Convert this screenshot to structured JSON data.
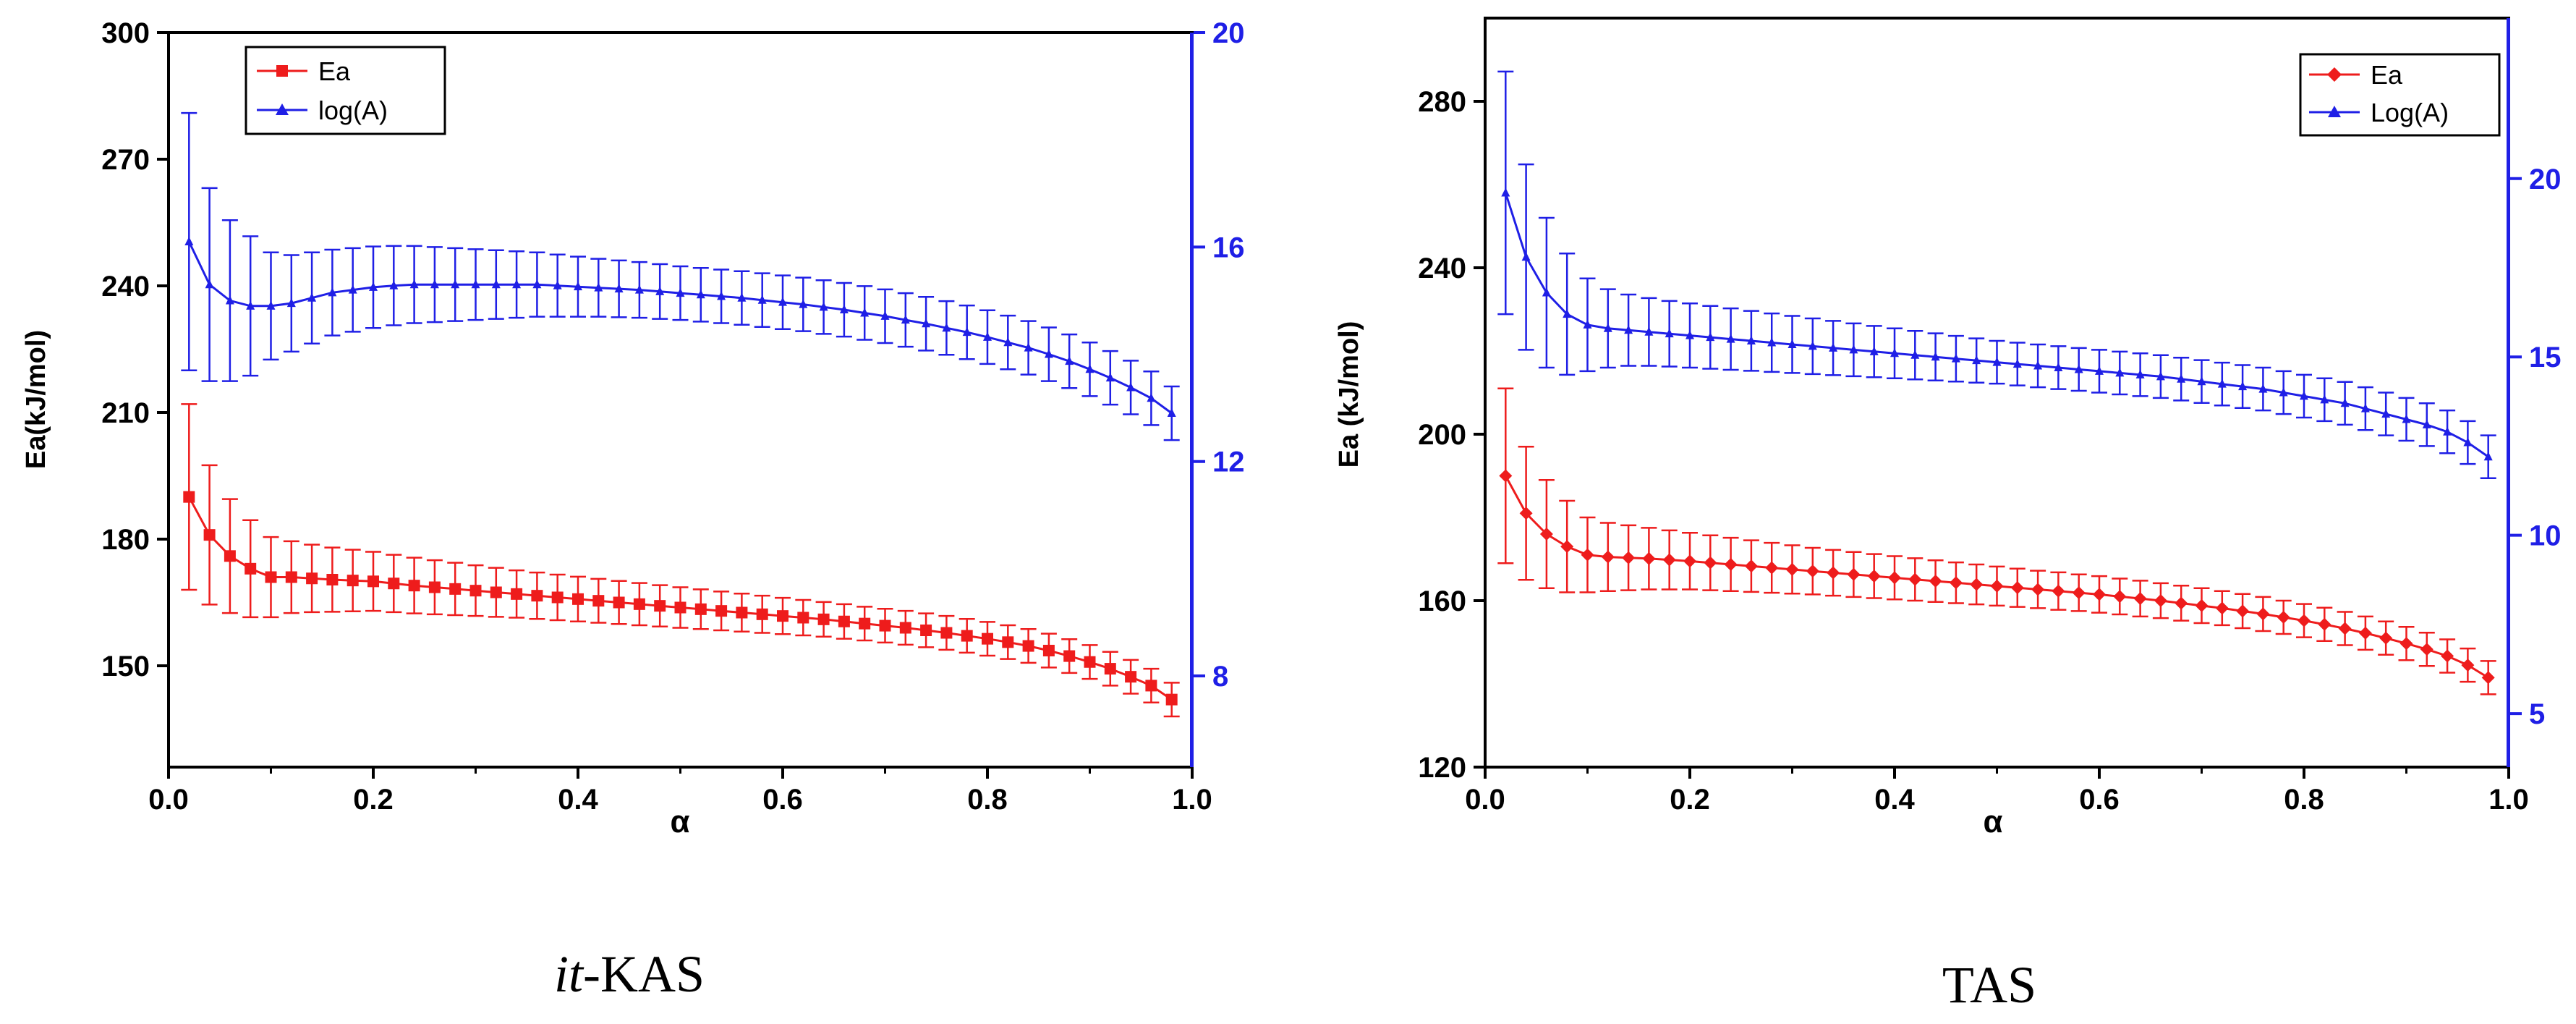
{
  "colors": {
    "ea": "#ee1c1c",
    "loga": "#1f1fe6",
    "axis": "#000000"
  },
  "chart_data": [
    {
      "type": "line",
      "caption_prefix": "it",
      "caption_suffix": "-KAS",
      "xlabel": "α",
      "ylabel": "Ea(kJ/mol)",
      "ylabel_right": "",
      "xlim": [
        0.0,
        1.0
      ],
      "ylim": [
        126,
        300
      ],
      "ylim_right": [
        6.3,
        20
      ],
      "x_ticks": [
        "0.0",
        "0.2",
        "0.4",
        "0.6",
        "0.8",
        "1.0"
      ],
      "y_ticks": [
        "150",
        "180",
        "210",
        "240",
        "270",
        "300"
      ],
      "y_ticks_right": [
        "8",
        "12",
        "16",
        "20"
      ],
      "legend": [
        "Ea",
        "log(A)"
      ],
      "legend_position": "top-left",
      "x": [
        0.02,
        0.04,
        0.06,
        0.08,
        0.1,
        0.12,
        0.14,
        0.16,
        0.18,
        0.2,
        0.22,
        0.24,
        0.26,
        0.28,
        0.3,
        0.32,
        0.34,
        0.36,
        0.38,
        0.4,
        0.42,
        0.44,
        0.46,
        0.48,
        0.5,
        0.52,
        0.54,
        0.56,
        0.58,
        0.6,
        0.62,
        0.64,
        0.66,
        0.68,
        0.7,
        0.72,
        0.74,
        0.76,
        0.78,
        0.8,
        0.82,
        0.84,
        0.86,
        0.88,
        0.9,
        0.92,
        0.94,
        0.96,
        0.98
      ],
      "series": [
        {
          "name": "Ea",
          "axis": "left",
          "marker": "square",
          "values": [
            190,
            181,
            176,
            173,
            171,
            171,
            170.7,
            170.4,
            170.2,
            170,
            169.5,
            169,
            168.6,
            168.2,
            167.8,
            167.4,
            167,
            166.6,
            166.2,
            165.8,
            165.4,
            165.0,
            164.6,
            164.2,
            163.8,
            163.4,
            163,
            162.6,
            162.2,
            161.8,
            161.4,
            161,
            160.5,
            160,
            159.5,
            159,
            158.4,
            157.8,
            157.1,
            156.4,
            155.6,
            154.7,
            153.6,
            152.3,
            150.9,
            149.3,
            147.4,
            145.3,
            142
          ],
          "errors": [
            22,
            16.5,
            13.5,
            11.5,
            9.5,
            8.5,
            8,
            7.6,
            7.3,
            7,
            6.8,
            6.6,
            6.4,
            6.2,
            6,
            5.8,
            5.6,
            5.5,
            5.4,
            5.3,
            5.2,
            5.1,
            5,
            4.9,
            4.8,
            4.7,
            4.6,
            4.5,
            4.4,
            4.3,
            4.2,
            4.1,
            4.1,
            4.0,
            4.0,
            4.0,
            4.0,
            4.0,
            4.0,
            4.0,
            4.0,
            4.0,
            4.0,
            4.0,
            4.0,
            4.0,
            4.0,
            4.0,
            4.0
          ]
        },
        {
          "name": "log(A)",
          "axis": "right",
          "marker": "triangle",
          "values": [
            16.1,
            15.3,
            15.0,
            14.9,
            14.9,
            14.95,
            15.05,
            15.15,
            15.2,
            15.25,
            15.28,
            15.3,
            15.3,
            15.3,
            15.3,
            15.3,
            15.3,
            15.3,
            15.28,
            15.26,
            15.24,
            15.22,
            15.2,
            15.17,
            15.14,
            15.11,
            15.08,
            15.05,
            15.01,
            14.97,
            14.93,
            14.88,
            14.83,
            14.77,
            14.71,
            14.64,
            14.57,
            14.49,
            14.41,
            14.32,
            14.22,
            14.12,
            14.0,
            13.87,
            13.72,
            13.56,
            13.38,
            13.18,
            12.9
          ],
          "errors": [
            2.4,
            1.8,
            1.5,
            1.3,
            1.0,
            0.9,
            0.85,
            0.8,
            0.78,
            0.76,
            0.74,
            0.72,
            0.7,
            0.68,
            0.66,
            0.64,
            0.62,
            0.6,
            0.58,
            0.56,
            0.54,
            0.53,
            0.52,
            0.51,
            0.5,
            0.5,
            0.5,
            0.5,
            0.5,
            0.5,
            0.5,
            0.5,
            0.5,
            0.5,
            0.5,
            0.5,
            0.5,
            0.5,
            0.5,
            0.5,
            0.5,
            0.5,
            0.5,
            0.5,
            0.5,
            0.5,
            0.5,
            0.5,
            0.5
          ]
        }
      ]
    },
    {
      "type": "line",
      "caption_prefix": "",
      "caption_suffix": "TAS",
      "xlabel": "α",
      "ylabel": "Ea (kJ/mol)",
      "ylabel_right": "",
      "xlim": [
        0.0,
        1.0
      ],
      "ylim": [
        120,
        300
      ],
      "ylim_right": [
        3.5,
        24.5
      ],
      "x_ticks": [
        "0.0",
        "0.2",
        "0.4",
        "0.6",
        "0.8",
        "1.0"
      ],
      "y_ticks": [
        "120",
        "160",
        "200",
        "240",
        "280"
      ],
      "y_ticks_right": [
        "5",
        "10",
        "15",
        "20"
      ],
      "legend": [
        "Ea",
        "Log(A)"
      ],
      "legend_position": "top-right",
      "x": [
        0.02,
        0.04,
        0.06,
        0.08,
        0.1,
        0.12,
        0.14,
        0.16,
        0.18,
        0.2,
        0.22,
        0.24,
        0.26,
        0.28,
        0.3,
        0.32,
        0.34,
        0.36,
        0.38,
        0.4,
        0.42,
        0.44,
        0.46,
        0.48,
        0.5,
        0.52,
        0.54,
        0.56,
        0.58,
        0.6,
        0.62,
        0.64,
        0.66,
        0.68,
        0.7,
        0.72,
        0.74,
        0.76,
        0.78,
        0.8,
        0.82,
        0.84,
        0.86,
        0.88,
        0.9,
        0.92,
        0.94,
        0.96,
        0.98
      ],
      "series": [
        {
          "name": "Ea",
          "axis": "left",
          "marker": "diamond",
          "values": [
            190,
            181,
            176,
            173,
            171,
            170.5,
            170.3,
            170.1,
            169.8,
            169.5,
            169.1,
            168.7,
            168.3,
            167.9,
            167.5,
            167.1,
            166.7,
            166.3,
            165.9,
            165.5,
            165.1,
            164.7,
            164.3,
            163.9,
            163.5,
            163.1,
            162.7,
            162.3,
            161.9,
            161.5,
            161.0,
            160.5,
            160.0,
            159.4,
            158.8,
            158.2,
            157.5,
            156.8,
            156.0,
            155.2,
            154.3,
            153.3,
            152.2,
            151.0,
            149.7,
            148.3,
            146.7,
            144.5,
            141.5
          ],
          "errors": [
            21,
            16,
            13,
            11,
            9,
            8.2,
            7.8,
            7.4,
            7.1,
            6.8,
            6.6,
            6.4,
            6.2,
            6.0,
            5.8,
            5.6,
            5.5,
            5.4,
            5.3,
            5.2,
            5.1,
            5.0,
            4.9,
            4.8,
            4.7,
            4.6,
            4.5,
            4.5,
            4.4,
            4.4,
            4.3,
            4.3,
            4.2,
            4.2,
            4.2,
            4.1,
            4.1,
            4.1,
            4.0,
            4.0,
            4.0,
            4.0,
            4.0,
            4.0,
            4.0,
            4.0,
            4.0,
            4.0,
            4.0
          ]
        },
        {
          "name": "Log(A)",
          "axis": "right",
          "marker": "triangle",
          "values": [
            19.6,
            17.8,
            16.8,
            16.2,
            15.9,
            15.8,
            15.75,
            15.7,
            15.65,
            15.6,
            15.55,
            15.5,
            15.45,
            15.4,
            15.35,
            15.3,
            15.25,
            15.2,
            15.15,
            15.1,
            15.05,
            15.0,
            14.95,
            14.9,
            14.85,
            14.8,
            14.75,
            14.7,
            14.65,
            14.6,
            14.55,
            14.5,
            14.45,
            14.38,
            14.31,
            14.24,
            14.17,
            14.1,
            14.0,
            13.9,
            13.8,
            13.7,
            13.55,
            13.4,
            13.25,
            13.1,
            12.9,
            12.6,
            12.2
          ],
          "errors": [
            3.4,
            2.6,
            2.1,
            1.7,
            1.3,
            1.1,
            1.0,
            0.95,
            0.92,
            0.9,
            0.88,
            0.86,
            0.84,
            0.82,
            0.8,
            0.78,
            0.76,
            0.74,
            0.72,
            0.7,
            0.68,
            0.66,
            0.64,
            0.62,
            0.6,
            0.6,
            0.6,
            0.6,
            0.6,
            0.6,
            0.6,
            0.6,
            0.6,
            0.6,
            0.6,
            0.6,
            0.6,
            0.6,
            0.6,
            0.6,
            0.6,
            0.6,
            0.6,
            0.6,
            0.6,
            0.6,
            0.6,
            0.6,
            0.6
          ]
        }
      ]
    }
  ]
}
